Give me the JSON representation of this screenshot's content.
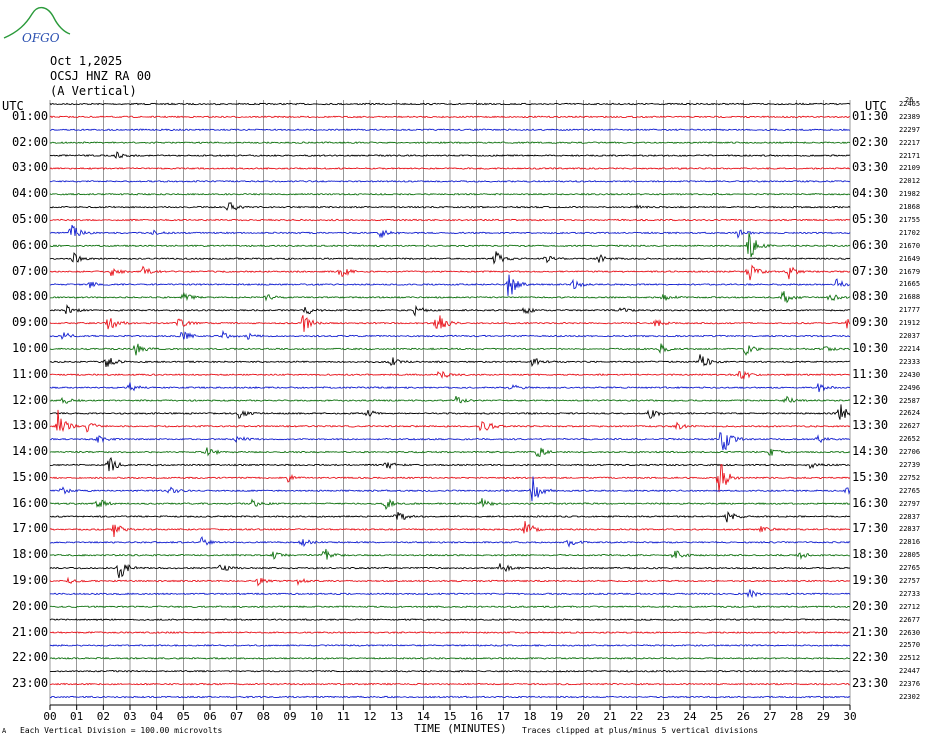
{
  "logo": {
    "text": "OFGO",
    "color": "#2a9a3a",
    "text_color": "#2a4fb0"
  },
  "header": {
    "date": "Oct 1,2025",
    "station": "OCSJ HNZ RA 00",
    "component": "(A Vertical)"
  },
  "left_tz": "UTC",
  "right_tz": "UTC",
  "corner_mark": "26",
  "footer": {
    "scale_note": "Each Vertical Division =  100.00 microvolts",
    "xlabel": "TIME (MINUTES)",
    "clip_note": "Traces clipped at plus/minus 5 vertical divisions",
    "corner_glyph": "A"
  },
  "chart_data": {
    "type": "helicorder",
    "xlabel": "TIME (MINUTES)",
    "x_ticks": [
      "00",
      "01",
      "02",
      "03",
      "04",
      "05",
      "06",
      "07",
      "08",
      "09",
      "10",
      "11",
      "12",
      "13",
      "14",
      "15",
      "16",
      "17",
      "18",
      "19",
      "20",
      "21",
      "22",
      "23",
      "24",
      "25",
      "26",
      "27",
      "28",
      "29",
      "30"
    ],
    "x_range": [
      0,
      30
    ],
    "grid": true,
    "trace_colors": [
      "#000000",
      "#e8141c",
      "#1420d0",
      "#117311"
    ],
    "left_hour_labels": [
      "01:00",
      "02:00",
      "03:00",
      "04:00",
      "05:00",
      "06:00",
      "07:00",
      "08:00",
      "09:00",
      "10:00",
      "11:00",
      "12:00",
      "13:00",
      "14:00",
      "15:00",
      "16:00",
      "17:00",
      "18:00",
      "19:00",
      "20:00",
      "21:00",
      "22:00",
      "23:00"
    ],
    "right_hour_labels": [
      "01:30",
      "02:30",
      "03:30",
      "04:30",
      "05:30",
      "06:30",
      "07:30",
      "08:30",
      "09:30",
      "10:30",
      "11:30",
      "12:30",
      "13:30",
      "14:30",
      "15:30",
      "16:30",
      "17:30",
      "18:30",
      "19:30",
      "20:30",
      "21:30",
      "22:30",
      "23:30"
    ],
    "right_counts": [
      "22465",
      "22389",
      "22297",
      "22217",
      "22171",
      "22109",
      "22012",
      "21982",
      "21868",
      "21755",
      "21702",
      "21670",
      "21649",
      "21679",
      "21665",
      "21688",
      "21777",
      "21912",
      "22037",
      "22214",
      "22333",
      "22430",
      "22496",
      "22587",
      "22624",
      "22627",
      "22652",
      "22706",
      "22739",
      "22752",
      "22765",
      "22797",
      "22837",
      "22837",
      "22816",
      "22805",
      "22765",
      "22757",
      "22733",
      "22712",
      "22677",
      "22630",
      "22570",
      "22512",
      "22447",
      "22376",
      "22302"
    ],
    "events": [
      {
        "row": 4,
        "minute": 2.5,
        "amp": 3
      },
      {
        "row": 8,
        "minute": 6.7,
        "amp": 6
      },
      {
        "row": 8,
        "minute": 21.9,
        "amp": 2
      },
      {
        "row": 10,
        "minute": 0.8,
        "amp": 14
      },
      {
        "row": 10,
        "minute": 3.8,
        "amp": 3
      },
      {
        "row": 10,
        "minute": 12.4,
        "amp": 5
      },
      {
        "row": 10,
        "minute": 25.8,
        "amp": 5
      },
      {
        "row": 11,
        "minute": 26.2,
        "amp": 18
      },
      {
        "row": 12,
        "minute": 0.9,
        "amp": 5
      },
      {
        "row": 12,
        "minute": 16.7,
        "amp": 8
      },
      {
        "row": 12,
        "minute": 18.6,
        "amp": 4
      },
      {
        "row": 12,
        "minute": 20.6,
        "amp": 4
      },
      {
        "row": 13,
        "minute": 2.3,
        "amp": 5
      },
      {
        "row": 13,
        "minute": 3.5,
        "amp": 6
      },
      {
        "row": 13,
        "minute": 10.9,
        "amp": 7
      },
      {
        "row": 13,
        "minute": 26.2,
        "amp": 10
      },
      {
        "row": 13,
        "minute": 27.7,
        "amp": 8
      },
      {
        "row": 14,
        "minute": 1.5,
        "amp": 3
      },
      {
        "row": 14,
        "minute": 17.2,
        "amp": 16
      },
      {
        "row": 14,
        "minute": 19.6,
        "amp": 5
      },
      {
        "row": 14,
        "minute": 29.5,
        "amp": 5
      },
      {
        "row": 15,
        "minute": 5.0,
        "amp": 5
      },
      {
        "row": 15,
        "minute": 8.1,
        "amp": 4
      },
      {
        "row": 15,
        "minute": 23.0,
        "amp": 4
      },
      {
        "row": 15,
        "minute": 27.5,
        "amp": 8
      },
      {
        "row": 15,
        "minute": 29.2,
        "amp": 6
      },
      {
        "row": 16,
        "minute": 0.6,
        "amp": 6
      },
      {
        "row": 16,
        "minute": 9.6,
        "amp": 5
      },
      {
        "row": 16,
        "minute": 13.7,
        "amp": 6
      },
      {
        "row": 16,
        "minute": 17.8,
        "amp": 4
      },
      {
        "row": 16,
        "minute": 21.4,
        "amp": 3
      },
      {
        "row": 17,
        "minute": 2.2,
        "amp": 12
      },
      {
        "row": 17,
        "minute": 4.8,
        "amp": 7
      },
      {
        "row": 17,
        "minute": 9.5,
        "amp": 10
      },
      {
        "row": 17,
        "minute": 14.5,
        "amp": 14
      },
      {
        "row": 17,
        "minute": 22.7,
        "amp": 4
      },
      {
        "row": 17,
        "minute": 29.9,
        "amp": 6
      },
      {
        "row": 18,
        "minute": 0.5,
        "amp": 4
      },
      {
        "row": 18,
        "minute": 4.9,
        "amp": 8
      },
      {
        "row": 18,
        "minute": 6.5,
        "amp": 5
      },
      {
        "row": 18,
        "minute": 7.4,
        "amp": 3
      },
      {
        "row": 19,
        "minute": 3.2,
        "amp": 7
      },
      {
        "row": 19,
        "minute": 22.9,
        "amp": 5
      },
      {
        "row": 19,
        "minute": 26.1,
        "amp": 6
      },
      {
        "row": 19,
        "minute": 29.0,
        "amp": 4
      },
      {
        "row": 20,
        "minute": 2.1,
        "amp": 9
      },
      {
        "row": 20,
        "minute": 12.8,
        "amp": 5
      },
      {
        "row": 20,
        "minute": 18.1,
        "amp": 5
      },
      {
        "row": 20,
        "minute": 24.4,
        "amp": 9
      },
      {
        "row": 21,
        "minute": 14.6,
        "amp": 7
      },
      {
        "row": 21,
        "minute": 25.9,
        "amp": 7
      },
      {
        "row": 22,
        "minute": 3.0,
        "amp": 5
      },
      {
        "row": 22,
        "minute": 17.3,
        "amp": 4
      },
      {
        "row": 22,
        "minute": 28.8,
        "amp": 5
      },
      {
        "row": 23,
        "minute": 0.5,
        "amp": 4
      },
      {
        "row": 23,
        "minute": 15.2,
        "amp": 5
      },
      {
        "row": 23,
        "minute": 27.6,
        "amp": 4
      },
      {
        "row": 24,
        "minute": 7.1,
        "amp": 5
      },
      {
        "row": 24,
        "minute": 11.9,
        "amp": 4
      },
      {
        "row": 24,
        "minute": 22.5,
        "amp": 5
      },
      {
        "row": 24,
        "minute": 29.6,
        "amp": 12
      },
      {
        "row": 25,
        "minute": 0.3,
        "amp": 16
      },
      {
        "row": 25,
        "minute": 1.4,
        "amp": 6
      },
      {
        "row": 25,
        "minute": 16.2,
        "amp": 12
      },
      {
        "row": 25,
        "minute": 23.5,
        "amp": 4
      },
      {
        "row": 26,
        "minute": 1.8,
        "amp": 4
      },
      {
        "row": 26,
        "minute": 7.0,
        "amp": 5
      },
      {
        "row": 26,
        "minute": 25.2,
        "amp": 20
      },
      {
        "row": 26,
        "minute": 28.8,
        "amp": 5
      },
      {
        "row": 27,
        "minute": 5.8,
        "amp": 9
      },
      {
        "row": 27,
        "minute": 18.3,
        "amp": 6
      },
      {
        "row": 27,
        "minute": 27.0,
        "amp": 5
      },
      {
        "row": 28,
        "minute": 2.2,
        "amp": 10
      },
      {
        "row": 28,
        "minute": 12.6,
        "amp": 5
      },
      {
        "row": 28,
        "minute": 28.4,
        "amp": 5
      },
      {
        "row": 29,
        "minute": 25.1,
        "amp": 22
      },
      {
        "row": 29,
        "minute": 8.9,
        "amp": 4
      },
      {
        "row": 30,
        "minute": 0.4,
        "amp": 4
      },
      {
        "row": 30,
        "minute": 4.5,
        "amp": 4
      },
      {
        "row": 30,
        "minute": 18.1,
        "amp": 16
      },
      {
        "row": 30,
        "minute": 29.9,
        "amp": 4
      },
      {
        "row": 31,
        "minute": 1.8,
        "amp": 6
      },
      {
        "row": 31,
        "minute": 7.6,
        "amp": 5
      },
      {
        "row": 31,
        "minute": 12.6,
        "amp": 6
      },
      {
        "row": 31,
        "minute": 16.2,
        "amp": 5
      },
      {
        "row": 32,
        "minute": 13.0,
        "amp": 8
      },
      {
        "row": 32,
        "minute": 25.4,
        "amp": 6
      },
      {
        "row": 33,
        "minute": 17.8,
        "amp": 12
      },
      {
        "row": 33,
        "minute": 2.4,
        "amp": 10
      },
      {
        "row": 33,
        "minute": 26.7,
        "amp": 4
      },
      {
        "row": 34,
        "minute": 5.7,
        "amp": 5
      },
      {
        "row": 34,
        "minute": 9.4,
        "amp": 6
      },
      {
        "row": 34,
        "minute": 19.4,
        "amp": 5
      },
      {
        "row": 35,
        "minute": 8.4,
        "amp": 5
      },
      {
        "row": 35,
        "minute": 10.3,
        "amp": 7
      },
      {
        "row": 35,
        "minute": 23.4,
        "amp": 7
      },
      {
        "row": 35,
        "minute": 28.1,
        "amp": 4
      },
      {
        "row": 36,
        "minute": 2.6,
        "amp": 14
      },
      {
        "row": 36,
        "minute": 6.4,
        "amp": 5
      },
      {
        "row": 36,
        "minute": 16.9,
        "amp": 6
      },
      {
        "row": 37,
        "minute": 0.7,
        "amp": 3
      },
      {
        "row": 37,
        "minute": 7.8,
        "amp": 4
      },
      {
        "row": 37,
        "minute": 9.3,
        "amp": 3
      },
      {
        "row": 38,
        "minute": 26.2,
        "amp": 5
      }
    ]
  }
}
